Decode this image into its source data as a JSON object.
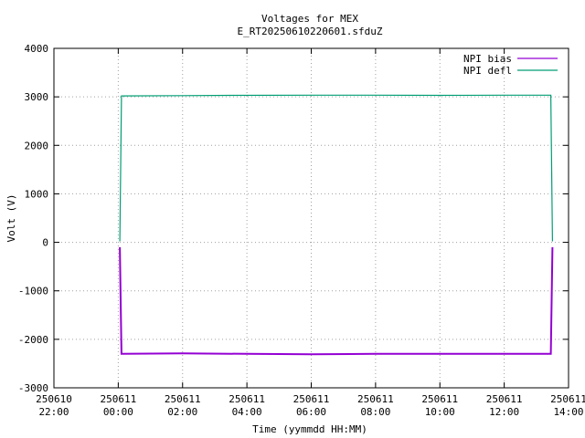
{
  "chart_data": {
    "type": "line",
    "title": "Voltages for MEX",
    "subtitle": "E_RT20250610220601.sfduZ",
    "xlabel": "Time (yymmdd HH:MM)",
    "ylabel": "Volt (V)",
    "x_range": [
      "2025-06-10 22:00",
      "2025-06-11 14:00"
    ],
    "ylim": [
      -3000,
      4000
    ],
    "y_ticks": [
      "4000",
      "3000",
      "2000",
      "1000",
      "0",
      "-1000",
      "-2000",
      "-3000"
    ],
    "x_ticks": [
      {
        "date": "250610",
        "time": "22:00"
      },
      {
        "date": "250611",
        "time": "00:00"
      },
      {
        "date": "250611",
        "time": "02:00"
      },
      {
        "date": "250611",
        "time": "04:00"
      },
      {
        "date": "250611",
        "time": "06:00"
      },
      {
        "date": "250611",
        "time": "08:00"
      },
      {
        "date": "250611",
        "time": "10:00"
      },
      {
        "date": "250611",
        "time": "12:00"
      },
      {
        "date": "250611",
        "time": "14:00"
      }
    ],
    "grid": true,
    "legend_position": "top-right",
    "series": [
      {
        "name": "NPI bias",
        "color": "#9400d3",
        "points": [
          {
            "t": "2025-06-11 00:03",
            "v": -100
          },
          {
            "t": "2025-06-11 00:06",
            "v": -2300
          },
          {
            "t": "2025-06-11 02:00",
            "v": -2290
          },
          {
            "t": "2025-06-11 04:00",
            "v": -2300
          },
          {
            "t": "2025-06-11 06:00",
            "v": -2310
          },
          {
            "t": "2025-06-11 08:00",
            "v": -2300
          },
          {
            "t": "2025-06-11 10:00",
            "v": -2300
          },
          {
            "t": "2025-06-11 12:00",
            "v": -2300
          },
          {
            "t": "2025-06-11 13:27",
            "v": -2300
          },
          {
            "t": "2025-06-11 13:30",
            "v": -100
          }
        ]
      },
      {
        "name": "NPI defl",
        "color": "#009e73",
        "points": [
          {
            "t": "2025-06-11 00:03",
            "v": 20
          },
          {
            "t": "2025-06-11 00:06",
            "v": 3020
          },
          {
            "t": "2025-06-11 02:00",
            "v": 3025
          },
          {
            "t": "2025-06-11 03:30",
            "v": 3030
          },
          {
            "t": "2025-06-11 06:00",
            "v": 3035
          },
          {
            "t": "2025-06-11 08:00",
            "v": 3035
          },
          {
            "t": "2025-06-11 10:00",
            "v": 3030
          },
          {
            "t": "2025-06-11 12:00",
            "v": 3035
          },
          {
            "t": "2025-06-11 13:27",
            "v": 3035
          },
          {
            "t": "2025-06-11 13:30",
            "v": 20
          }
        ]
      }
    ]
  }
}
